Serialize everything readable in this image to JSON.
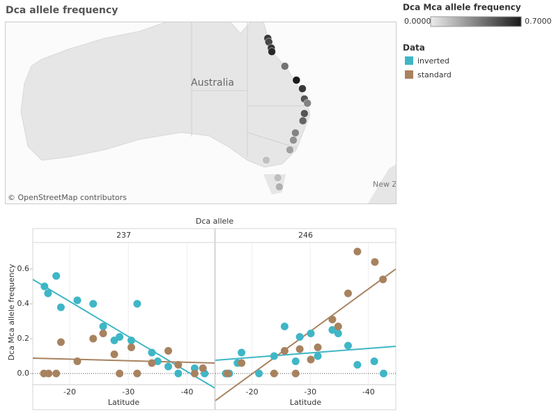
{
  "title": "Dca allele frequency",
  "color_legend": {
    "title": "Dca Mca allele frequency",
    "min": {
      "value": 0,
      "label": "0.0000"
    },
    "max": {
      "value": 0.7,
      "label": "0.7000"
    },
    "colors": [
      "#ececec",
      "#1a1a1a"
    ]
  },
  "legend": {
    "title": "Data"
  },
  "map": {
    "type": "map",
    "label": "Australia",
    "edge_label": "New Z",
    "attribution": "© OpenStreetMap contributors",
    "lon": [
      145.7,
      145.9,
      146.4,
      146.5,
      149.1,
      151.4,
      152.6,
      153.0,
      153.6,
      153.0,
      152.7,
      151.2,
      150.8,
      150.1,
      145.4,
      147.7,
      148.0
    ],
    "lat": [
      -16.9,
      -17.5,
      -18.5,
      -19.1,
      -21.5,
      -23.8,
      -25.2,
      -26.9,
      -27.6,
      -29.3,
      -30.5,
      -32.5,
      -33.7,
      -35.3,
      -37.0,
      -39.9,
      -41.4
    ],
    "values": [
      0.6,
      0.55,
      0.6,
      0.65,
      0.4,
      0.7,
      0.6,
      0.5,
      0.35,
      0.5,
      0.45,
      0.35,
      0.3,
      0.25,
      0.15,
      0.15,
      0.2
    ]
  },
  "chart_data": {
    "type": "scatter",
    "title": "Dca allele",
    "x_label": "Latitude",
    "y_label": "Dca Mca allele frequency",
    "xlim": [
      -13.7,
      -44.7
    ],
    "xticks": [
      -20,
      -30,
      -40
    ],
    "ylim": [
      -0.064,
      0.752
    ],
    "yticks": [
      {
        "value": 0,
        "label": "0.0"
      },
      0.2,
      0.4,
      0.6
    ],
    "panels": [
      {
        "name": "237",
        "series": [
          {
            "name": "inverted",
            "color": "#3fb6c6",
            "x": [
              -15.7,
              -16.3,
              -17.7,
              -18.5,
              -21.3,
              -24.0,
              -25.7,
              -27.6,
              -28.5,
              -30.5,
              -31.5,
              -34.0,
              -35.0,
              -36.8,
              -38.5,
              -41.3,
              -43.0
            ],
            "values": [
              0.5,
              0.46,
              0.56,
              0.38,
              0.42,
              0.4,
              0.27,
              0.19,
              0.21,
              0.19,
              0.4,
              0.12,
              0.07,
              0.04,
              0,
              0.03,
              0
            ],
            "trend": {
              "x": [
                -13.7,
                -44.7
              ],
              "y": [
                0.54,
                -0.083
              ]
            }
          },
          {
            "name": "standard",
            "color": "#a8825f",
            "x": [
              -15.6,
              -16.4,
              -17.7,
              -18.5,
              -21.3,
              -24.0,
              -25.7,
              -27.6,
              -28.5,
              -30.5,
              -31.5,
              -34.0,
              -36.8,
              -38.5,
              -41.3,
              -42.7
            ],
            "values": [
              0,
              0,
              0,
              0.18,
              0.07,
              0.2,
              0.23,
              0.11,
              0,
              0.15,
              0,
              0.06,
              0.13,
              0.05,
              0,
              0.03
            ],
            "trend": {
              "x": [
                -13.7,
                -44.7
              ],
              "y": [
                0.088,
                0.06
              ]
            }
          }
        ]
      },
      {
        "name": "246",
        "series": [
          {
            "name": "inverted",
            "color": "#3fb6c6",
            "x": [
              -15.5,
              -16.1,
              -17.5,
              -18.2,
              -21.2,
              -23.8,
              -25.6,
              -27.5,
              -28.2,
              -30.1,
              -31.3,
              -33.8,
              -34.8,
              -36.5,
              -38.1,
              -41.0,
              -42.6
            ],
            "values": [
              0,
              0,
              0.06,
              0.12,
              0,
              0.1,
              0.27,
              0.07,
              0.21,
              0.23,
              0.1,
              0.25,
              0.23,
              0.16,
              0.05,
              0.07,
              0
            ],
            "trend": {
              "x": [
                -13.7,
                -44.7
              ],
              "y": [
                0.076,
                0.156
              ]
            }
          },
          {
            "name": "standard",
            "color": "#a8825f",
            "x": [
              -15.8,
              -18.2,
              -23.8,
              -25.6,
              -27.5,
              -28.2,
              -30.1,
              -31.3,
              -33.8,
              -34.8,
              -36.5,
              -38.1,
              -41.1,
              -42.5
            ],
            "values": [
              0,
              0.06,
              0,
              0.13,
              0,
              0.14,
              0.08,
              0.15,
              0.31,
              0.27,
              0.46,
              0.7,
              0.64,
              0.54
            ],
            "trend": {
              "x": [
                -13.7,
                -44.7
              ],
              "y": [
                -0.156,
                0.6
              ]
            }
          }
        ]
      }
    ]
  }
}
